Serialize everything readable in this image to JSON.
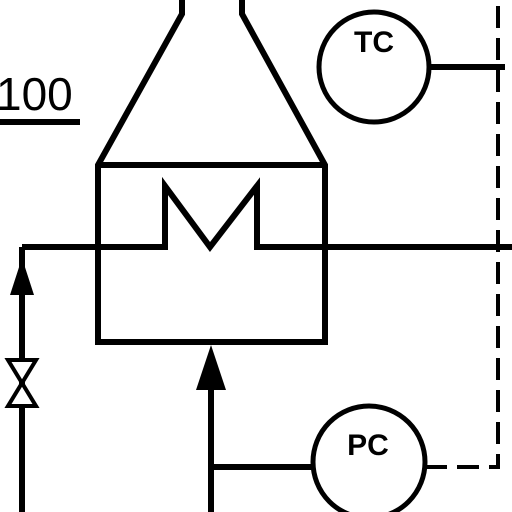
{
  "diagram": {
    "equipment_tag": "100",
    "instruments": {
      "temperature_controller": "TC",
      "pressure_controller": "PC"
    }
  }
}
